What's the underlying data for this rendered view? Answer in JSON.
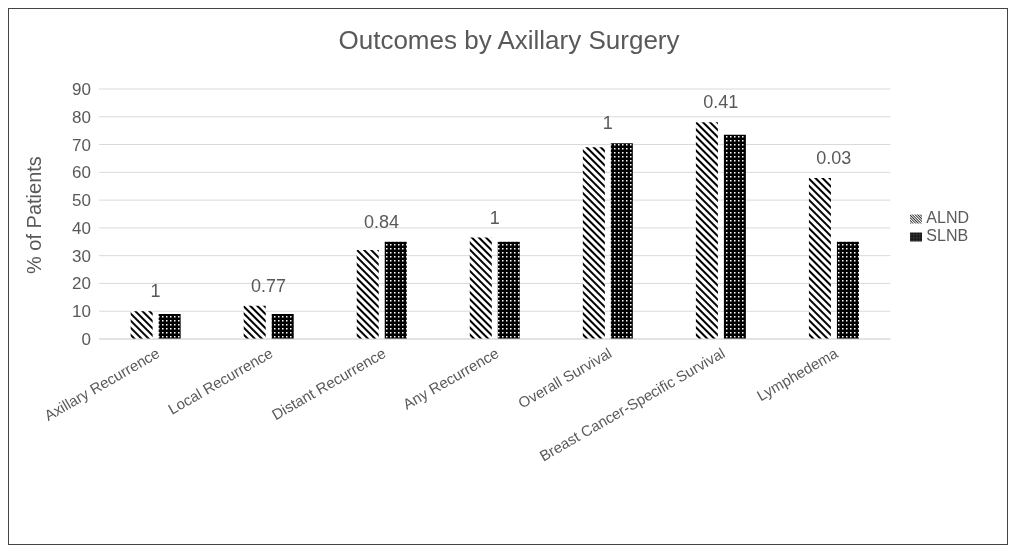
{
  "chart_data": {
    "type": "bar",
    "title": "Outcomes by Axillary Surgery",
    "ylabel": "% of Patients",
    "categories": [
      "Axillary Recurrence",
      "Local Recurrence",
      "Distant Recurrence",
      "Any Recurrence",
      "Overall Survival",
      "Breast Cancer-Specific Survival",
      "Lymphedema"
    ],
    "series": [
      {
        "name": "ALND",
        "color": "#000000",
        "values": [
          10,
          12,
          32,
          36.5,
          69,
          78,
          58
        ]
      },
      {
        "name": "SLNB",
        "color": "#000000",
        "values": [
          9,
          9,
          35,
          35,
          70.5,
          73.5,
          35
        ]
      }
    ],
    "ylim": [
      0,
      90
    ],
    "yticks": [
      0,
      10,
      20,
      30,
      40,
      50,
      60,
      70,
      80,
      90
    ],
    "grid": "y",
    "legend": "right",
    "annotations": [
      "1",
      "0.77",
      "0.84",
      "1",
      "1",
      "0.41",
      "0.03"
    ]
  }
}
